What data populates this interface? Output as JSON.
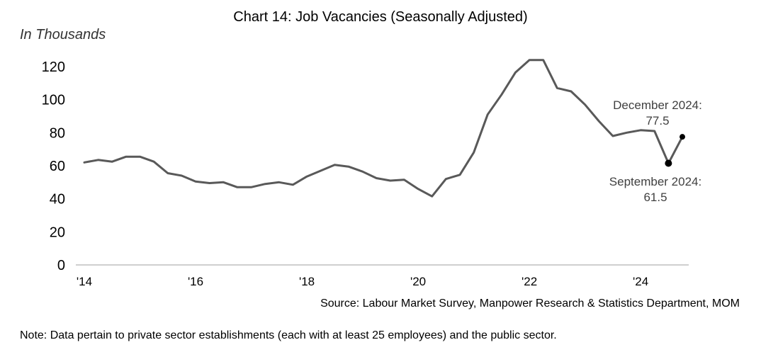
{
  "chart_data": {
    "type": "line",
    "title": "Chart 14: Job Vacancies (Seasonally Adjusted)",
    "ylabel": "In Thousands",
    "xlabel": "",
    "ylim": [
      0,
      120
    ],
    "yticks": [
      0,
      20,
      40,
      60,
      80,
      100,
      120
    ],
    "xticks": [
      {
        "label": "'14",
        "x": 2014.0
      },
      {
        "label": "'16",
        "x": 2016.0
      },
      {
        "label": "'18",
        "x": 2018.0
      },
      {
        "label": "'20",
        "x": 2020.0
      },
      {
        "label": "'22",
        "x": 2022.0
      },
      {
        "label": "'24",
        "x": 2024.0
      }
    ],
    "grid": false,
    "line_color": "#595959",
    "marker_color": "#000000",
    "series": [
      {
        "x": [
          2014.0,
          2014.25,
          2014.5,
          2014.75,
          2015.0,
          2015.25,
          2015.5,
          2015.75,
          2016.0,
          2016.25,
          2016.5,
          2016.75,
          2017.0,
          2017.25,
          2017.5,
          2017.75,
          2018.0,
          2018.25,
          2018.5,
          2018.75,
          2019.0,
          2019.25,
          2019.5,
          2019.75,
          2020.0,
          2020.25,
          2020.5,
          2020.75,
          2021.0,
          2021.25,
          2021.5,
          2021.75,
          2022.0,
          2022.25,
          2022.5,
          2022.75,
          2023.0,
          2023.25,
          2023.5,
          2023.75,
          2024.0,
          2024.25,
          2024.5,
          2024.75
        ],
        "values": [
          62,
          63.5,
          62.5,
          65.5,
          65.5,
          62.5,
          55.5,
          54,
          50.5,
          49.5,
          50,
          47,
          47,
          49,
          50,
          48.5,
          53.5,
          57,
          60.5,
          59.5,
          56.5,
          52.5,
          51,
          51.5,
          46,
          41.5,
          52,
          54.5,
          68,
          91,
          103,
          116.5,
          124,
          124,
          107,
          105,
          97,
          87,
          78,
          80,
          81.5,
          81,
          61.5,
          77.5
        ]
      }
    ],
    "annotations": [
      {
        "line1": "December 2024:",
        "line2": "77.5",
        "x": 2024.75,
        "y": 77.5
      },
      {
        "line1": "September 2024:",
        "line2": "61.5",
        "x": 2024.5,
        "y": 61.5
      }
    ]
  },
  "source": "Source: Labour Market Survey, Manpower Research & Statistics Department, MOM",
  "note": "Note: Data pertain to private sector establishments (each with at least 25 employees) and the public sector."
}
